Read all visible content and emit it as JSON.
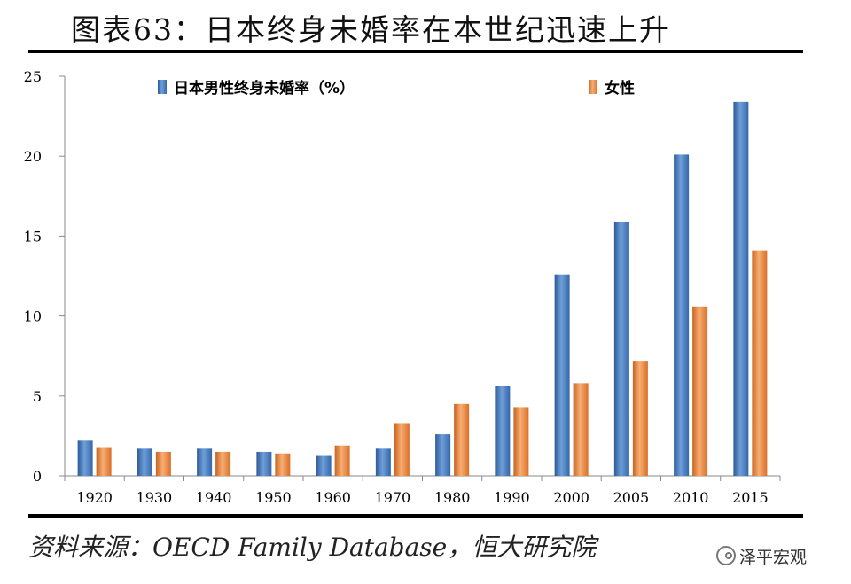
{
  "title": "图表63：日本终身未婚率在本世纪迅速上升",
  "source": "资料来源：OECD Family Database，恒大研究院",
  "watermark": "泽平宏观",
  "colors": {
    "male": "#3f78be",
    "female": "#ee8135"
  },
  "chart_data": {
    "type": "bar",
    "categories": [
      "1920",
      "1930",
      "1940",
      "1950",
      "1960",
      "1970",
      "1980",
      "1990",
      "2000",
      "2005",
      "2010",
      "2015"
    ],
    "series": [
      {
        "name": "日本男性终身未婚率（%）",
        "values": [
          2.2,
          1.7,
          1.7,
          1.5,
          1.3,
          1.7,
          2.6,
          5.6,
          12.6,
          15.9,
          20.1,
          23.4
        ]
      },
      {
        "name": "女性",
        "values": [
          1.8,
          1.5,
          1.5,
          1.4,
          1.9,
          3.3,
          4.5,
          4.3,
          5.8,
          7.2,
          10.6,
          14.1
        ]
      }
    ],
    "ylim": [
      0,
      25
    ],
    "yticks": [
      0,
      5,
      10,
      15,
      20,
      25
    ],
    "legend_position": "top",
    "grid": false
  }
}
